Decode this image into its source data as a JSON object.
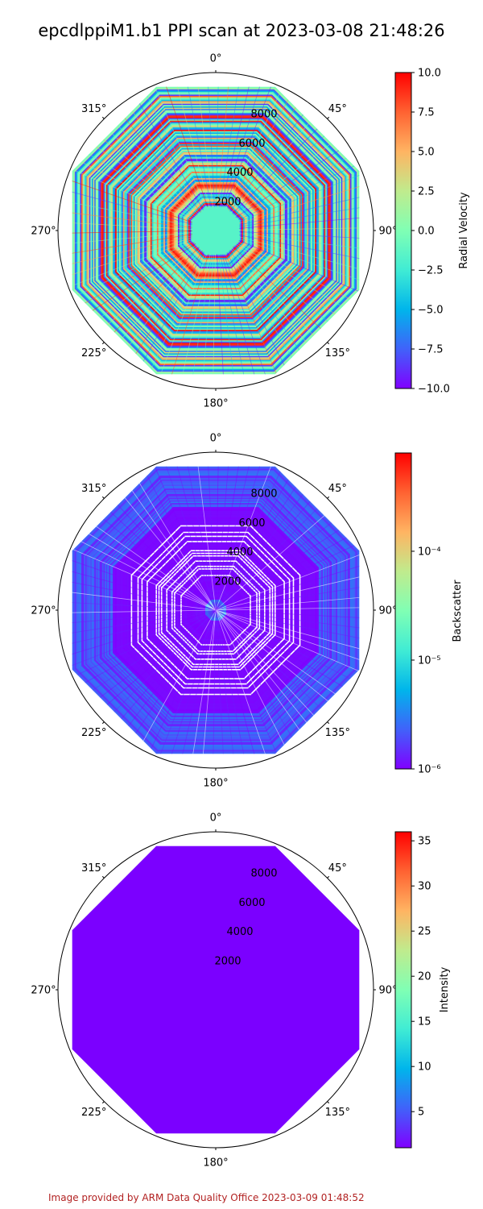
{
  "title": "epcdlppiM1.b1 PPI scan at 2023-03-08 21:48:26",
  "footer": "Image provided by ARM Data Quality Office 2023-03-09 01:48:52",
  "colors": {
    "rainbow": [
      "#8000ff",
      "#4062fa",
      "#00b5eb",
      "#40ecd4",
      "#80ffb4",
      "#c0eb8d",
      "#ffb462",
      "#ff6231",
      "#ff0000"
    ],
    "low_fill": "#7b00ff",
    "frame": "#000000"
  },
  "chart_data": [
    {
      "type": "heatmap",
      "projection": "polar",
      "variable": "Radial Velocity",
      "angle_ticks": [
        "0°",
        "45°",
        "90°",
        "135°",
        "180°",
        "225°",
        "270°",
        "315°"
      ],
      "radial_ticks": [
        2000,
        4000,
        6000,
        8000
      ],
      "radial_tick_labels": [
        "2000",
        "4000",
        "6000",
        "8000"
      ],
      "rmax": 10000,
      "scan_shape": "octagon",
      "colorbar": {
        "label": "Radial Velocity",
        "scale": "linear",
        "range": [
          -10.0,
          10.0
        ],
        "ticks": [
          -10.0,
          -7.5,
          -5.0,
          -2.5,
          0.0,
          2.5,
          5.0,
          7.5,
          10.0
        ],
        "tick_labels": [
          "−10.0",
          "−7.5",
          "−5.0",
          "−2.5",
          "0.0",
          "2.5",
          "5.0",
          "7.5",
          "10.0"
        ],
        "colormap": "rainbow"
      },
      "pattern": "noise"
    },
    {
      "type": "heatmap",
      "projection": "polar",
      "variable": "Backscatter",
      "angle_ticks": [
        "0°",
        "45°",
        "90°",
        "135°",
        "180°",
        "225°",
        "270°",
        "315°"
      ],
      "radial_ticks": [
        2000,
        4000,
        6000,
        8000
      ],
      "radial_tick_labels": [
        "2000",
        "4000",
        "6000",
        "8000"
      ],
      "rmax": 10000,
      "scan_shape": "octagon",
      "colorbar": {
        "label": "Backscatter",
        "scale": "log",
        "range": [
          1e-06,
          0.0008
        ],
        "ticks": [
          1e-06,
          1e-05,
          0.0001
        ],
        "tick_labels": [
          "10⁻⁶",
          "10⁻⁵",
          "10⁻⁴"
        ],
        "colormap": "rainbow"
      },
      "pattern": "low-with-blue-edges"
    },
    {
      "type": "heatmap",
      "projection": "polar",
      "variable": "Intensity",
      "angle_ticks": [
        "0°",
        "45°",
        "90°",
        "135°",
        "180°",
        "225°",
        "270°",
        "315°"
      ],
      "radial_ticks": [
        2000,
        4000,
        6000,
        8000
      ],
      "radial_tick_labels": [
        "2000",
        "4000",
        "6000",
        "8000"
      ],
      "rmax": 10000,
      "scan_shape": "octagon",
      "colorbar": {
        "label": "Intensity",
        "scale": "linear",
        "range": [
          1,
          36
        ],
        "ticks": [
          5,
          10,
          15,
          20,
          25,
          30,
          35
        ],
        "tick_labels": [
          "5",
          "10",
          "15",
          "20",
          "25",
          "30",
          "35"
        ],
        "colormap": "rainbow"
      },
      "pattern": "uniform-minimum"
    }
  ]
}
